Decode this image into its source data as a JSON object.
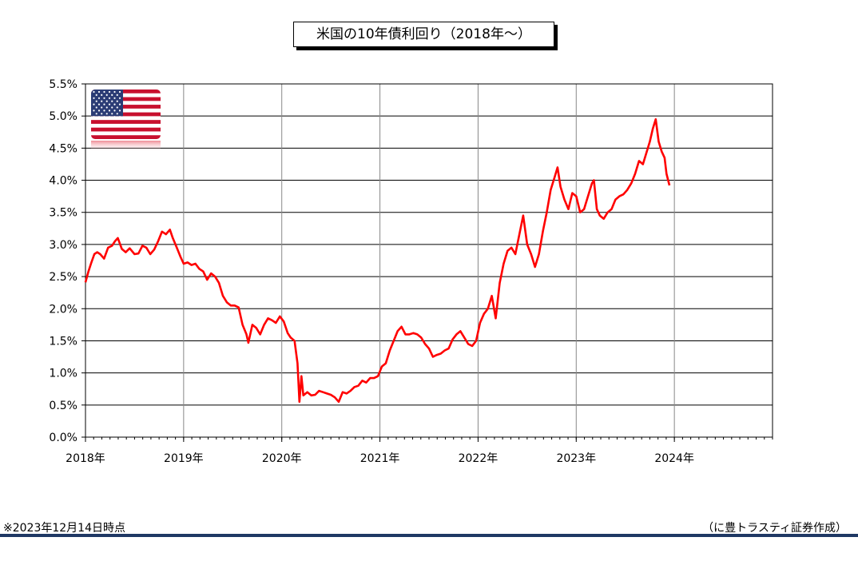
{
  "title": "米国の10年債利回り（2018年～）",
  "footer": {
    "note": "※2023年12月14日時点",
    "source": "（に豊トラスティ証券作成）"
  },
  "colors": {
    "series": "#ff0000",
    "grid": "#000000",
    "rule": "#1f3864"
  },
  "icons": {
    "flag": "us-flag-icon"
  },
  "chart_data": {
    "type": "line",
    "title": "米国の10年債利回り（2018年～）",
    "xlabel": "",
    "ylabel": "",
    "xlim": [
      2018.0,
      2025.0
    ],
    "ylim": [
      0.0,
      5.5
    ],
    "y_ticks": [
      "0.0%",
      "0.5%",
      "1.0%",
      "1.5%",
      "2.0%",
      "2.5%",
      "3.0%",
      "3.5%",
      "4.0%",
      "4.5%",
      "5.0%",
      "5.5%"
    ],
    "x_ticks": [
      {
        "x": 2018,
        "label": "2018年"
      },
      {
        "x": 2019,
        "label": "2019年"
      },
      {
        "x": 2020,
        "label": "2020年"
      },
      {
        "x": 2021,
        "label": "2021年"
      },
      {
        "x": 2022,
        "label": "2022年"
      },
      {
        "x": 2023,
        "label": "2023年"
      },
      {
        "x": 2024,
        "label": "2024年"
      }
    ],
    "grid": true,
    "legend": "none",
    "series": [
      {
        "values": [
          [
            2018.0,
            2.41
          ],
          [
            2018.03,
            2.58
          ],
          [
            2018.06,
            2.72
          ],
          [
            2018.09,
            2.85
          ],
          [
            2018.12,
            2.88
          ],
          [
            2018.15,
            2.85
          ],
          [
            2018.19,
            2.78
          ],
          [
            2018.23,
            2.95
          ],
          [
            2018.27,
            2.98
          ],
          [
            2018.3,
            3.05
          ],
          [
            2018.33,
            3.1
          ],
          [
            2018.37,
            2.93
          ],
          [
            2018.41,
            2.88
          ],
          [
            2018.45,
            2.94
          ],
          [
            2018.5,
            2.85
          ],
          [
            2018.54,
            2.86
          ],
          [
            2018.58,
            2.98
          ],
          [
            2018.62,
            2.95
          ],
          [
            2018.66,
            2.85
          ],
          [
            2018.7,
            2.92
          ],
          [
            2018.74,
            3.05
          ],
          [
            2018.78,
            3.2
          ],
          [
            2018.82,
            3.16
          ],
          [
            2018.86,
            3.23
          ],
          [
            2018.89,
            3.1
          ],
          [
            2018.93,
            2.95
          ],
          [
            2018.97,
            2.8
          ],
          [
            2019.0,
            2.7
          ],
          [
            2019.04,
            2.72
          ],
          [
            2019.08,
            2.68
          ],
          [
            2019.12,
            2.7
          ],
          [
            2019.16,
            2.62
          ],
          [
            2019.2,
            2.58
          ],
          [
            2019.24,
            2.45
          ],
          [
            2019.28,
            2.55
          ],
          [
            2019.32,
            2.5
          ],
          [
            2019.36,
            2.4
          ],
          [
            2019.4,
            2.2
          ],
          [
            2019.44,
            2.1
          ],
          [
            2019.48,
            2.05
          ],
          [
            2019.52,
            2.05
          ],
          [
            2019.56,
            2.02
          ],
          [
            2019.6,
            1.75
          ],
          [
            2019.64,
            1.6
          ],
          [
            2019.66,
            1.47
          ],
          [
            2019.7,
            1.75
          ],
          [
            2019.74,
            1.7
          ],
          [
            2019.78,
            1.6
          ],
          [
            2019.82,
            1.75
          ],
          [
            2019.86,
            1.85
          ],
          [
            2019.9,
            1.82
          ],
          [
            2019.94,
            1.78
          ],
          [
            2019.98,
            1.88
          ],
          [
            2020.02,
            1.8
          ],
          [
            2020.06,
            1.62
          ],
          [
            2020.09,
            1.55
          ],
          [
            2020.13,
            1.5
          ],
          [
            2020.16,
            1.15
          ],
          [
            2020.18,
            0.55
          ],
          [
            2020.2,
            0.95
          ],
          [
            2020.22,
            0.65
          ],
          [
            2020.26,
            0.7
          ],
          [
            2020.3,
            0.65
          ],
          [
            2020.34,
            0.66
          ],
          [
            2020.38,
            0.72
          ],
          [
            2020.42,
            0.7
          ],
          [
            2020.46,
            0.68
          ],
          [
            2020.5,
            0.66
          ],
          [
            2020.54,
            0.62
          ],
          [
            2020.58,
            0.55
          ],
          [
            2020.62,
            0.7
          ],
          [
            2020.66,
            0.68
          ],
          [
            2020.7,
            0.72
          ],
          [
            2020.74,
            0.78
          ],
          [
            2020.78,
            0.8
          ],
          [
            2020.82,
            0.88
          ],
          [
            2020.86,
            0.85
          ],
          [
            2020.9,
            0.92
          ],
          [
            2020.94,
            0.92
          ],
          [
            2020.98,
            0.95
          ],
          [
            2021.02,
            1.1
          ],
          [
            2021.06,
            1.15
          ],
          [
            2021.1,
            1.35
          ],
          [
            2021.14,
            1.5
          ],
          [
            2021.18,
            1.65
          ],
          [
            2021.22,
            1.72
          ],
          [
            2021.26,
            1.6
          ],
          [
            2021.3,
            1.6
          ],
          [
            2021.34,
            1.62
          ],
          [
            2021.38,
            1.6
          ],
          [
            2021.42,
            1.55
          ],
          [
            2021.46,
            1.45
          ],
          [
            2021.5,
            1.38
          ],
          [
            2021.54,
            1.25
          ],
          [
            2021.58,
            1.28
          ],
          [
            2021.62,
            1.3
          ],
          [
            2021.66,
            1.35
          ],
          [
            2021.7,
            1.38
          ],
          [
            2021.74,
            1.52
          ],
          [
            2021.78,
            1.6
          ],
          [
            2021.82,
            1.65
          ],
          [
            2021.86,
            1.55
          ],
          [
            2021.9,
            1.45
          ],
          [
            2021.94,
            1.42
          ],
          [
            2021.98,
            1.5
          ],
          [
            2022.02,
            1.78
          ],
          [
            2022.06,
            1.92
          ],
          [
            2022.1,
            2.0
          ],
          [
            2022.14,
            2.2
          ],
          [
            2022.18,
            1.85
          ],
          [
            2022.22,
            2.4
          ],
          [
            2022.26,
            2.7
          ],
          [
            2022.3,
            2.9
          ],
          [
            2022.34,
            2.95
          ],
          [
            2022.38,
            2.85
          ],
          [
            2022.42,
            3.15
          ],
          [
            2022.46,
            3.45
          ],
          [
            2022.5,
            3.0
          ],
          [
            2022.54,
            2.85
          ],
          [
            2022.58,
            2.65
          ],
          [
            2022.62,
            2.85
          ],
          [
            2022.66,
            3.2
          ],
          [
            2022.7,
            3.5
          ],
          [
            2022.74,
            3.85
          ],
          [
            2022.78,
            4.05
          ],
          [
            2022.81,
            4.2
          ],
          [
            2022.84,
            3.9
          ],
          [
            2022.88,
            3.7
          ],
          [
            2022.92,
            3.55
          ],
          [
            2022.96,
            3.8
          ],
          [
            2023.0,
            3.75
          ],
          [
            2023.04,
            3.5
          ],
          [
            2023.08,
            3.55
          ],
          [
            2023.12,
            3.75
          ],
          [
            2023.16,
            3.95
          ],
          [
            2023.18,
            4.0
          ],
          [
            2023.21,
            3.55
          ],
          [
            2023.24,
            3.45
          ],
          [
            2023.28,
            3.4
          ],
          [
            2023.32,
            3.5
          ],
          [
            2023.36,
            3.55
          ],
          [
            2023.4,
            3.7
          ],
          [
            2023.44,
            3.75
          ],
          [
            2023.48,
            3.78
          ],
          [
            2023.52,
            3.85
          ],
          [
            2023.56,
            3.95
          ],
          [
            2023.6,
            4.1
          ],
          [
            2023.64,
            4.3
          ],
          [
            2023.68,
            4.25
          ],
          [
            2023.72,
            4.45
          ],
          [
            2023.75,
            4.6
          ],
          [
            2023.78,
            4.8
          ],
          [
            2023.81,
            4.95
          ],
          [
            2023.84,
            4.6
          ],
          [
            2023.87,
            4.45
          ],
          [
            2023.9,
            4.35
          ],
          [
            2023.92,
            4.1
          ],
          [
            2023.95,
            3.92
          ]
        ]
      }
    ]
  }
}
